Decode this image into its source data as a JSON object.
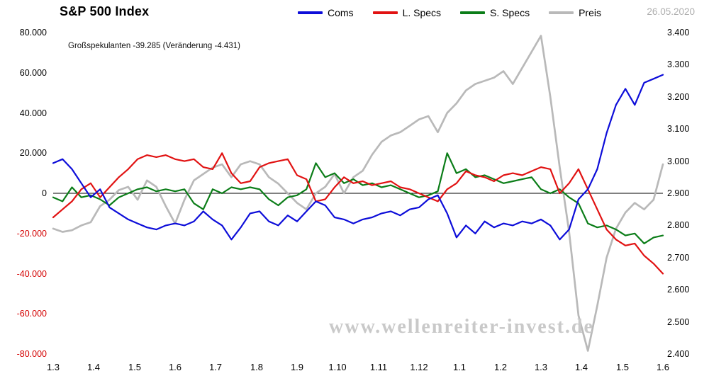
{
  "header": {
    "title": "S&P 500 Index",
    "subtitle": "Großspekulanten -39.285  (Veränderung -4.431)",
    "date": "26.05.2020"
  },
  "watermark": "www.wellenreiter-invest.de",
  "chart_data": {
    "type": "line",
    "title": "S&P 500 Index",
    "annotation": "Großspekulanten -39.285 (Veränderung -4.431)",
    "legend_position": "top",
    "grid": false,
    "x_tick_labels": [
      "1.3",
      "1.4",
      "1.5",
      "1.6",
      "1.7",
      "1.8",
      "1.9",
      "1.10",
      "1.11",
      "1.12",
      "1.1",
      "1.2",
      "1.3",
      "1.4",
      "1.5",
      "1.6"
    ],
    "left_axis": {
      "min": -80000,
      "max": 80000,
      "tick_values": [
        80000,
        60000,
        40000,
        20000,
        0,
        -20000,
        -40000,
        -60000,
        -80000
      ],
      "tick_labels": [
        "80.000",
        "60.000",
        "40.000",
        "20.000",
        "0",
        "-20.000",
        "-40.000",
        "-60.000",
        "-80.000"
      ],
      "negative_color": "#d40000"
    },
    "right_axis": {
      "min": 2400,
      "max": 3400,
      "tick_values": [
        3400,
        3300,
        3200,
        3100,
        3000,
        2900,
        2800,
        2700,
        2600,
        2500,
        2400
      ],
      "tick_labels": [
        "3.400",
        "3.300",
        "3.200",
        "3.100",
        "3.000",
        "2.900",
        "2.800",
        "2.700",
        "2.600",
        "2.500",
        "2.400"
      ]
    },
    "series": [
      {
        "name": "Coms",
        "color": "#0d0dd9",
        "axis": "left",
        "width": 2.2,
        "values": [
          15000,
          17000,
          12000,
          5000,
          -2000,
          2000,
          -7000,
          -10000,
          -13000,
          -15000,
          -17000,
          -18000,
          -16000,
          -15000,
          -16000,
          -14000,
          -9000,
          -13000,
          -16000,
          -23000,
          -17000,
          -10000,
          -9000,
          -14000,
          -16000,
          -11000,
          -14000,
          -9000,
          -4000,
          -6000,
          -12000,
          -13000,
          -15000,
          -13000,
          -12000,
          -10000,
          -9000,
          -11000,
          -8000,
          -7000,
          -3000,
          -1000,
          -10000,
          -22000,
          -16000,
          -20000,
          -14000,
          -17000,
          -15000,
          -16000,
          -14000,
          -15000,
          -13000,
          -16000,
          -23000,
          -18000,
          -3000,
          2000,
          12000,
          30000,
          44000,
          52000,
          44000,
          55000,
          57000,
          59000
        ]
      },
      {
        "name": "L. Specs",
        "color": "#e11212",
        "axis": "left",
        "width": 2.2,
        "values": [
          -12000,
          -8000,
          -4000,
          2000,
          5000,
          -2000,
          3000,
          8000,
          12000,
          17000,
          19000,
          18000,
          19000,
          17000,
          16000,
          17000,
          13000,
          12000,
          20000,
          10000,
          5000,
          6000,
          13000,
          15000,
          16000,
          17000,
          9000,
          7000,
          -4000,
          -3000,
          3000,
          8000,
          5000,
          6000,
          4000,
          5000,
          6000,
          3000,
          2000,
          0,
          -2000,
          -4000,
          2000,
          5000,
          11000,
          9000,
          8000,
          6000,
          9000,
          10000,
          9000,
          11000,
          13000,
          12000,
          0,
          5000,
          12000,
          2000,
          -8000,
          -18000,
          -23000,
          -26000,
          -25000,
          -31000,
          -35000,
          -40000
        ]
      },
      {
        "name": "S. Specs",
        "color": "#0b7d18",
        "axis": "left",
        "width": 2.2,
        "values": [
          -2000,
          -4000,
          3000,
          -2000,
          -1000,
          -3000,
          -6000,
          -2000,
          0,
          2000,
          3000,
          1000,
          2000,
          1000,
          2000,
          -5000,
          -8000,
          2000,
          0,
          3000,
          2000,
          3000,
          2000,
          -3000,
          -6000,
          -2000,
          -1000,
          2000,
          15000,
          8000,
          10000,
          5000,
          7000,
          4000,
          5000,
          3000,
          4000,
          2000,
          0,
          -2000,
          -1000,
          1000,
          20000,
          10000,
          12000,
          8000,
          9000,
          7000,
          5000,
          6000,
          7000,
          8000,
          2000,
          0,
          2000,
          -2000,
          -5000,
          -15000,
          -17000,
          -16000,
          -18000,
          -21000,
          -20000,
          -25000,
          -22000,
          -21000
        ]
      },
      {
        "name": "Preis",
        "color": "#b9b9b9",
        "axis": "right",
        "width": 2.7,
        "values": [
          2790,
          2780,
          2785,
          2800,
          2810,
          2860,
          2880,
          2910,
          2920,
          2880,
          2940,
          2920,
          2860,
          2806,
          2880,
          2940,
          2960,
          2980,
          2990,
          2950,
          2990,
          3000,
          2990,
          2950,
          2930,
          2900,
          2870,
          2850,
          2900,
          2920,
          2960,
          2900,
          2950,
          2970,
          3020,
          3060,
          3080,
          3090,
          3110,
          3130,
          3140,
          3090,
          3150,
          3180,
          3220,
          3240,
          3250,
          3260,
          3280,
          3240,
          3290,
          3340,
          3390,
          3200,
          2980,
          2780,
          2520,
          2410,
          2550,
          2700,
          2790,
          2840,
          2870,
          2850,
          2880,
          2990
        ]
      }
    ]
  }
}
